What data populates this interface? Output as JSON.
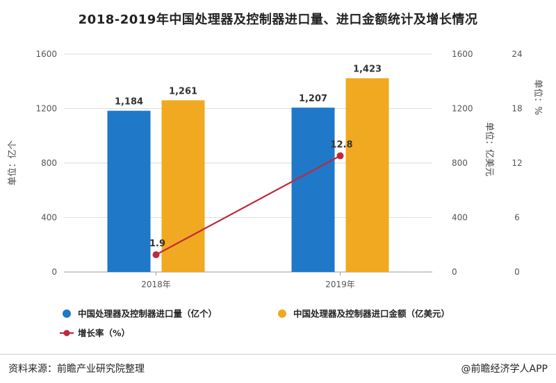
{
  "title": "2018-2019年中国处理器及控制器进口量、进口金额统计及增长情况",
  "footer": {
    "source": "资料来源：前瞻产业研究院整理",
    "brand": "@前瞻经济学人APP"
  },
  "chart_data": {
    "type": "bar",
    "categories": [
      "2018年",
      "2019年"
    ],
    "series": [
      {
        "name": "中国处理器及控制器进口量（亿个）",
        "kind": "bar",
        "axis": "left",
        "values": [
          1184,
          1207
        ],
        "labels": [
          "1,184",
          "1,207"
        ],
        "color": "#1f78c8"
      },
      {
        "name": "中国处理器及控制器进口金额（亿美元）",
        "kind": "bar",
        "axis": "right1",
        "values": [
          1261,
          1423
        ],
        "labels": [
          "1,261",
          "1,423"
        ],
        "color": "#f0a920"
      },
      {
        "name": "增长率（%）",
        "kind": "line",
        "axis": "right2",
        "values": [
          1.9,
          12.8
        ],
        "labels": [
          "1.9",
          "12.8"
        ],
        "color": "#c0283c"
      }
    ],
    "axes": {
      "left": {
        "label": "单位：亿个",
        "ylim": [
          0,
          1600
        ],
        "ticks": [
          0,
          400,
          800,
          1200,
          1600
        ]
      },
      "right1": {
        "label": "单位：亿美元",
        "ylim": [
          0,
          1600
        ],
        "ticks": [
          0,
          400,
          800,
          1200,
          1600
        ]
      },
      "right2": {
        "label": "单位：%",
        "ylim": [
          0,
          24
        ],
        "ticks": [
          0,
          6,
          12,
          18,
          24
        ]
      }
    },
    "grid": true,
    "legend_position": "bottom-left"
  }
}
